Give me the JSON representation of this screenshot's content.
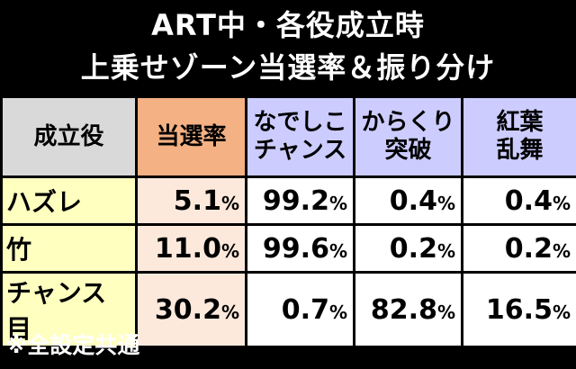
{
  "header": {
    "title_lines": [
      "ART中・各役成立時",
      "上乗せゾーン当選率＆振り分け"
    ]
  },
  "table": {
    "columns": [
      [
        "成立役"
      ],
      [
        "当選率"
      ],
      [
        "なでしこ",
        "チャンス"
      ],
      [
        "からくり",
        "突破"
      ],
      [
        "紅葉",
        "乱舞"
      ]
    ],
    "rows": [
      {
        "label": "ハズレ",
        "cells": [
          [
            "5.1",
            "%"
          ],
          [
            "99.2",
            "%"
          ],
          [
            "0.4",
            "%"
          ],
          [
            "0.4",
            "%"
          ]
        ]
      },
      {
        "label": "竹",
        "cells": [
          [
            "11.0",
            "%"
          ],
          [
            "99.6",
            "%"
          ],
          [
            "0.2",
            "%"
          ],
          [
            "0.2",
            "%"
          ]
        ]
      },
      {
        "label": "チャンス目",
        "cells": [
          [
            "30.2",
            "%"
          ],
          [
            "0.7",
            "%"
          ],
          [
            "82.8",
            "%"
          ],
          [
            "16.5",
            "%"
          ]
        ]
      }
    ]
  },
  "footnote": "※全設定共通"
}
